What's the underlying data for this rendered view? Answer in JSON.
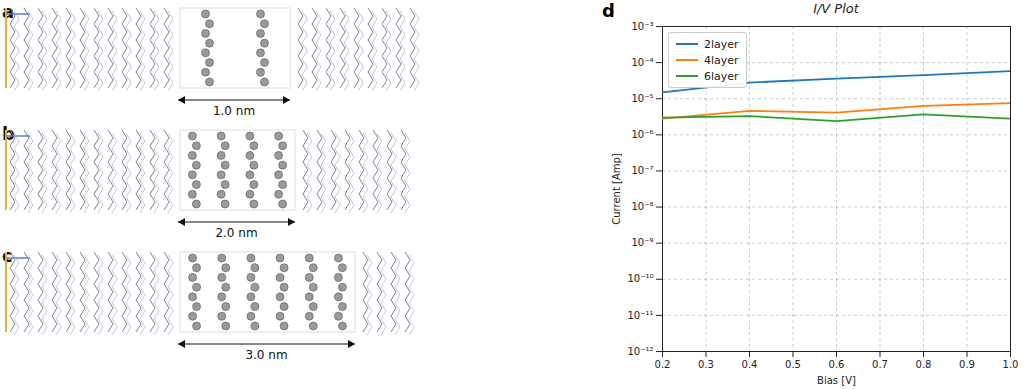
{
  "figure": {
    "panels": [
      {
        "label": "a",
        "dimension": "1.0 nm"
      },
      {
        "label": "b",
        "dimension": "2.0 nm"
      },
      {
        "label": "c",
        "dimension": "3.0 nm"
      }
    ],
    "chart_label": "d"
  },
  "chart_data": {
    "type": "line",
    "title": "I/V Plot",
    "x_label": "Bias [V]",
    "y_label": "Current [Amp]",
    "x": [
      0.2,
      0.4,
      0.6,
      0.8,
      1.0
    ],
    "series": [
      {
        "name": "2layer",
        "color": "#1f77b4",
        "values": [
          1.5e-05,
          2.8e-05,
          3.6e-05,
          4.5e-05,
          5.8e-05
        ]
      },
      {
        "name": "4layer",
        "color": "#ff7f0e",
        "values": [
          2.8e-06,
          4.6e-06,
          4.1e-06,
          6.3e-06,
          7.6e-06
        ]
      },
      {
        "name": "6layer",
        "color": "#2ca02c",
        "values": [
          3e-06,
          3.3e-06,
          2.4e-06,
          3.7e-06,
          2.8e-06
        ]
      }
    ],
    "xlim": [
      0.2,
      1.0
    ],
    "xticks": [
      0.2,
      0.3,
      0.4,
      0.5,
      0.6,
      0.7,
      0.8,
      0.9,
      {
        "value": 1.0,
        "label": "1.0"
      }
    ],
    "ylim": [
      1e-12,
      0.001
    ],
    "yticks": [
      {
        "value": 1e-12,
        "label": "10⁻¹²"
      },
      {
        "value": 1e-11,
        "label": "10⁻¹¹"
      },
      {
        "value": 1e-10,
        "label": "10⁻¹⁰"
      },
      {
        "value": 1e-09,
        "label": "10⁻⁹"
      },
      {
        "value": 1e-08,
        "label": "10⁻⁸"
      },
      {
        "value": 1e-07,
        "label": "10⁻⁷"
      },
      {
        "value": 1e-06,
        "label": "10⁻⁶"
      },
      {
        "value": 1e-05,
        "label": "10⁻⁵"
      },
      {
        "value": 0.0001,
        "label": "10⁻⁴"
      },
      {
        "value": 0.001,
        "label": "10⁻³"
      }
    ],
    "log": "y",
    "grid": true,
    "legend": "upper left"
  }
}
